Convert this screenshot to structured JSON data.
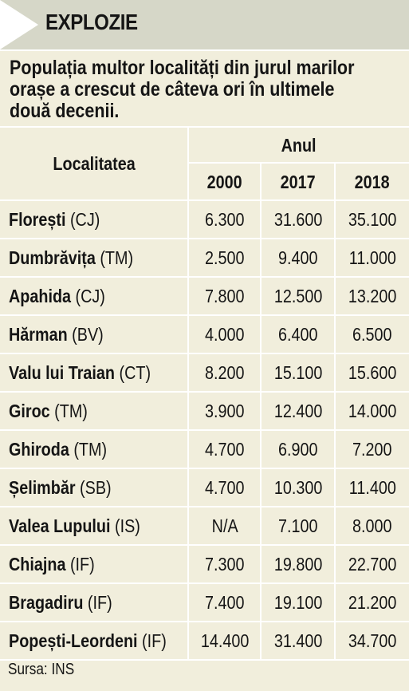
{
  "header": {
    "title": "EXPLOZIE"
  },
  "intro_lines": [
    "Populația multor localități din jurul marilor",
    "orașe a crescut de câteva ori în ultimele",
    "două decenii."
  ],
  "table": {
    "col_locality": "Localitatea",
    "col_group": "Anul",
    "years": [
      "2000",
      "2017",
      "2018"
    ],
    "rows": [
      {
        "name": "Florești",
        "county": "(CJ)",
        "values": [
          "6.300",
          "31.600",
          "35.100"
        ]
      },
      {
        "name": "Dumbrăvița",
        "county": "(TM)",
        "values": [
          "2.500",
          "9.400",
          "11.000"
        ]
      },
      {
        "name": "Apahida",
        "county": "(CJ)",
        "values": [
          "7.800",
          "12.500",
          "13.200"
        ]
      },
      {
        "name": "Hărman",
        "county": "(BV)",
        "values": [
          "4.000",
          "6.400",
          "6.500"
        ]
      },
      {
        "name": "Valu lui Traian",
        "county": "(CT)",
        "values": [
          "8.200",
          "15.100",
          "15.600"
        ]
      },
      {
        "name": "Giroc",
        "county": "(TM)",
        "values": [
          "3.900",
          "12.400",
          "14.000"
        ]
      },
      {
        "name": "Ghiroda",
        "county": "(TM)",
        "values": [
          "4.700",
          "6.900",
          "7.200"
        ]
      },
      {
        "name": "Șelimbăr",
        "county": "(SB)",
        "values": [
          "4.700",
          "10.300",
          "11.400"
        ]
      },
      {
        "name": "Valea Lupului",
        "county": "(IS)",
        "values": [
          "N/A",
          "7.100",
          "8.000"
        ]
      },
      {
        "name": "Chiajna",
        "county": "(IF)",
        "values": [
          "7.300",
          "19.800",
          "22.700"
        ]
      },
      {
        "name": "Bragadiru",
        "county": "(IF)",
        "values": [
          "7.400",
          "19.100",
          "21.200"
        ]
      },
      {
        "name": "Popești-Leordeni",
        "county": "(IF)",
        "values": [
          "14.400",
          "31.400",
          "34.700"
        ]
      }
    ]
  },
  "source": "Sursa: INS"
}
